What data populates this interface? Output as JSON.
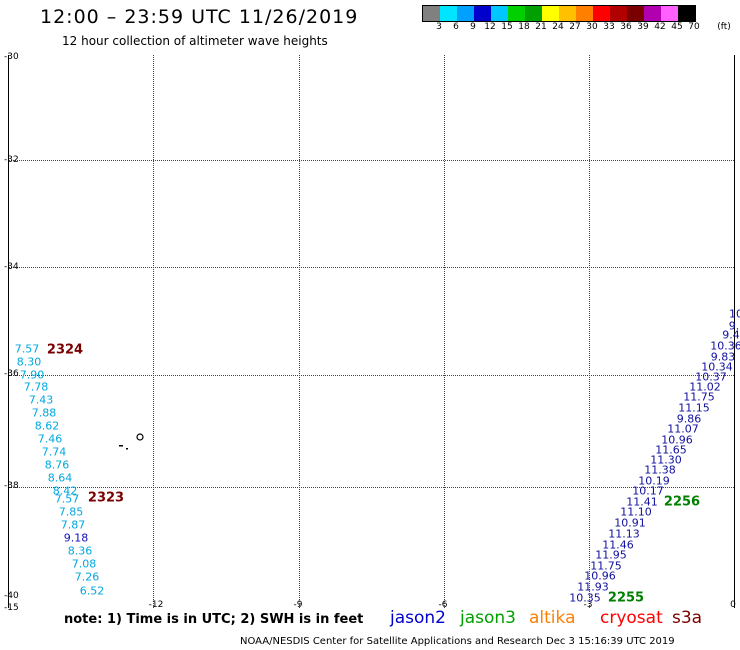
{
  "header": {
    "title": "12:00 – 23:59 UTC 11/26/2019",
    "subtitle": "12 hour collection of altimeter wave heights"
  },
  "colorbar": {
    "colors": [
      "#808080",
      "#00e5ff",
      "#00a0ff",
      "#0000cc",
      "#00c8ff",
      "#00d000",
      "#00a000",
      "#ffff00",
      "#ffc000",
      "#ff8000",
      "#ff0000",
      "#b00000",
      "#7a0000",
      "#b000b0",
      "#ff60ff",
      "#000000"
    ],
    "labels": [
      "3",
      "6",
      "9",
      "12",
      "15",
      "18",
      "21",
      "24",
      "27",
      "30",
      "33",
      "36",
      "39",
      "42",
      "45",
      "70"
    ],
    "unit": "(ft)"
  },
  "axes": {
    "lat_labels": [
      "-30",
      "-32",
      "-34",
      "-36",
      "-38",
      "-40",
      "-15"
    ],
    "lon_labels": [
      "-12",
      "-9",
      "-6",
      "-3",
      "0"
    ]
  },
  "observations": {
    "cyan_track": [
      {
        "v": "7.57",
        "c": "#00a8e0"
      },
      {
        "v": "8.30",
        "c": "#00a8e0"
      },
      {
        "v": "7.90",
        "c": "#00a8e0"
      },
      {
        "v": "7.78",
        "c": "#00a8e0"
      },
      {
        "v": "7.43",
        "c": "#00a8e0"
      },
      {
        "v": "7.88",
        "c": "#00a8e0"
      },
      {
        "v": "8.62",
        "c": "#00a8e0"
      },
      {
        "v": "7.46",
        "c": "#00a8e0"
      },
      {
        "v": "7.74",
        "c": "#00a8e0"
      },
      {
        "v": "8.76",
        "c": "#00a8e0"
      },
      {
        "v": "8.64",
        "c": "#00a8e0"
      },
      {
        "v": "8.42",
        "c": "#00a8e0"
      },
      {
        "v": "7.57",
        "c": "#00a8e0"
      },
      {
        "v": "7.85",
        "c": "#00a8e0"
      },
      {
        "v": "7.87",
        "c": "#00a8e0"
      },
      {
        "v": "9.18",
        "c": "#1010c0"
      },
      {
        "v": "8.36",
        "c": "#00a8e0"
      },
      {
        "v": "7.08",
        "c": "#00a8e0"
      },
      {
        "v": "7.26",
        "c": "#00a8e0"
      },
      {
        "v": "6.52",
        "c": "#00a8e0"
      }
    ],
    "blue_track": [
      "10",
      "9.",
      "9.4",
      "10.36",
      "9.83",
      "10.34",
      "10.37",
      "11.02",
      "11.75",
      "11.15",
      "9.86",
      "11.07",
      "10.96",
      "11.65",
      "11.30",
      "11.38",
      "10.19",
      "10.17",
      "11.41",
      "11.10",
      "10.91",
      "11.13",
      "11.46",
      "11.95",
      "11.75",
      "10.96",
      "11.93",
      "10.35"
    ],
    "track_labels": [
      {
        "text": "2324",
        "color": "#7a0000"
      },
      {
        "text": "2323",
        "color": "#7a0000"
      },
      {
        "text": "2256",
        "color": "#008000"
      },
      {
        "text": "2255",
        "color": "#008000"
      }
    ]
  },
  "note": "note:  1) Time is in UTC;  2) SWH is in feet",
  "legend": [
    {
      "name": "jason2",
      "color": "#0000cc"
    },
    {
      "name": "jason3",
      "color": "#00a000"
    },
    {
      "name": "altika",
      "color": "#ff8000"
    },
    {
      "name": "cryosat",
      "color": "#ff0000"
    },
    {
      "name": "s3a",
      "color": "#7a0000"
    }
  ],
  "footer": "NOAA/NESDIS Center for Satellite Applications and Research    Dec  3 15:16:39 UTC 2019"
}
